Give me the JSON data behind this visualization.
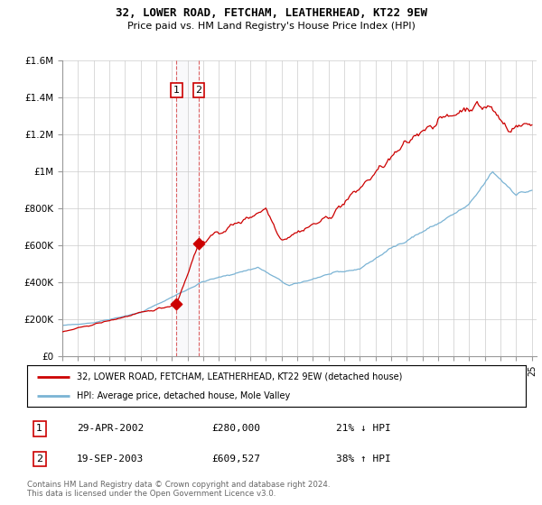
{
  "title": "32, LOWER ROAD, FETCHAM, LEATHERHEAD, KT22 9EW",
  "subtitle": "Price paid vs. HM Land Registry's House Price Index (HPI)",
  "sale1_date": "29-APR-2002",
  "sale1_price": 280000,
  "sale1_year": 2002.29,
  "sale1_label": "1",
  "sale1_pct": "21% ↓ HPI",
  "sale2_date": "19-SEP-2003",
  "sale2_price": 609527,
  "sale2_year": 2003.71,
  "sale2_label": "2",
  "sale2_pct": "38% ↑ HPI",
  "legend_line1": "32, LOWER ROAD, FETCHAM, LEATHERHEAD, KT22 9EW (detached house)",
  "legend_line2": "HPI: Average price, detached house, Mole Valley",
  "footer1": "Contains HM Land Registry data © Crown copyright and database right 2024.",
  "footer2": "This data is licensed under the Open Government Licence v3.0.",
  "hpi_color": "#7ab3d4",
  "price_color": "#cc0000",
  "vline_color": "#cc0000",
  "ylim_max": 1600000,
  "yticks": [
    0,
    200000,
    400000,
    600000,
    800000,
    1000000,
    1200000,
    1400000,
    1600000
  ],
  "ytick_labels": [
    "£0",
    "£200K",
    "£400K",
    "£600K",
    "£800K",
    "£1M",
    "£1.2M",
    "£1.4M",
    "£1.6M"
  ]
}
